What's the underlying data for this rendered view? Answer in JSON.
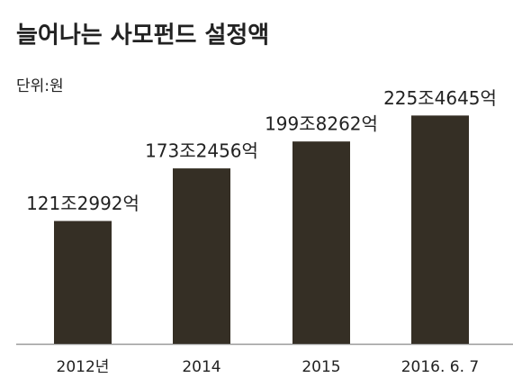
{
  "chart_data": {
    "type": "bar",
    "title": "늘어나는 사모펀드 설정액",
    "unit_label": "단위:원",
    "categories": [
      "2012년",
      "2014",
      "2015",
      "2016. 6. 7"
    ],
    "values": [
      121.2992,
      173.2456,
      199.8262,
      225.4645
    ],
    "value_labels": [
      "121조2992억",
      "173조2456억",
      "199조8262억",
      "225조4645억"
    ],
    "color": "#352f25"
  }
}
